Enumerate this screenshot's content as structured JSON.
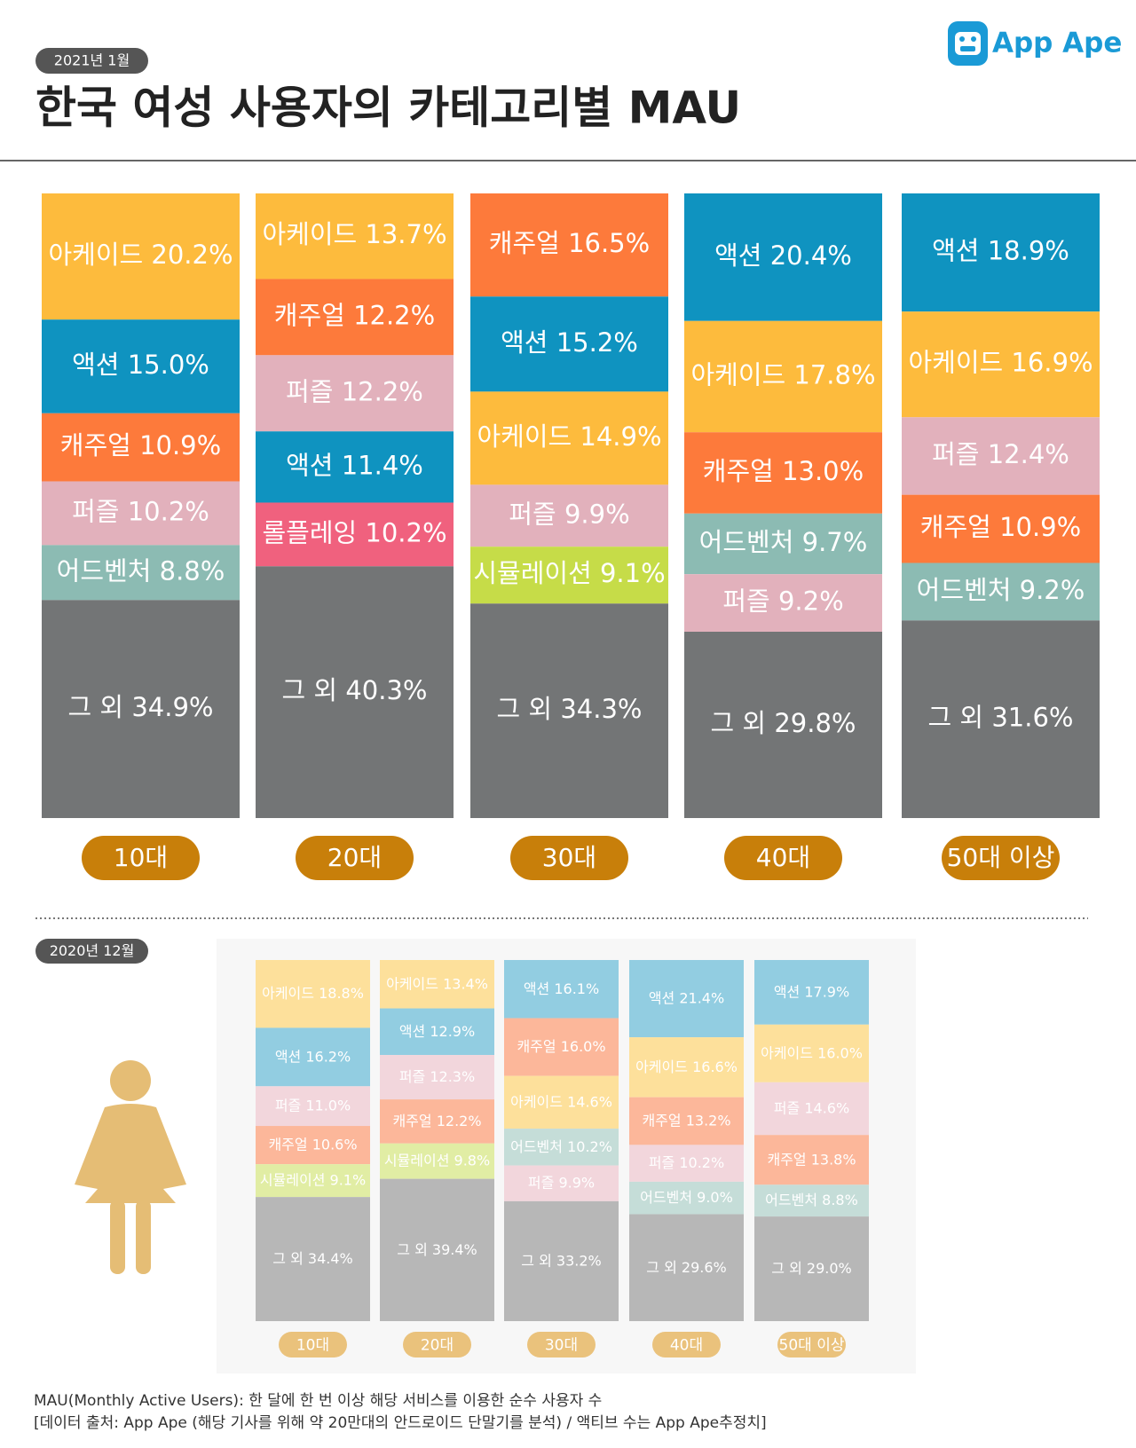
{
  "header": {
    "title": "한국 여성 사용자의 카테고리별 MAU",
    "logo": "App Ape"
  },
  "chart_data": [
    {
      "type": "stacked-bar",
      "period": "2021년 1월",
      "categories": [
        "10대",
        "20대",
        "30대",
        "40대",
        "50대 이상"
      ],
      "colors": {
        "아케이드": "#fdbb3d",
        "액션": "#0f93c0",
        "캐주얼": "#fd7a3b",
        "퍼즐": "#e2b1bc",
        "어드벤처": "#8cbbb3",
        "롤플레잉": "#f0617e",
        "시뮬레이션": "#c6dc48",
        "그 외": "#737576"
      },
      "columns": [
        {
          "names": [
            "아케이드",
            "액션",
            "캐주얼",
            "퍼즐",
            "어드벤처",
            "그 외"
          ],
          "values": [
            20.2,
            15.0,
            10.9,
            10.2,
            8.8,
            34.9
          ],
          "value_labels": [
            "20.2%",
            "15.0%",
            "10.9%",
            "10.2%",
            "8.8%",
            "34.9%"
          ]
        },
        {
          "names": [
            "아케이드",
            "캐주얼",
            "퍼즐",
            "액션",
            "롤플레잉",
            "그 외"
          ],
          "values": [
            13.7,
            12.2,
            12.2,
            11.4,
            10.2,
            40.3
          ],
          "value_labels": [
            "13.7%",
            "12.2%",
            "12.2%",
            "11.4%",
            "10.2%",
            "40.3%"
          ]
        },
        {
          "names": [
            "캐주얼",
            "액션",
            "아케이드",
            "퍼즐",
            "시뮬레이션",
            "그 외"
          ],
          "values": [
            16.5,
            15.2,
            14.9,
            9.9,
            9.1,
            34.3
          ],
          "value_labels": [
            "16.5%",
            "15.2%",
            "14.9%",
            "9.9%",
            "9.1%",
            "34.3%"
          ]
        },
        {
          "names": [
            "액션",
            "아케이드",
            "캐주얼",
            "어드벤처",
            "퍼즐",
            "그 외"
          ],
          "values": [
            20.4,
            17.8,
            13.0,
            9.7,
            9.2,
            29.8
          ],
          "value_labels": [
            "20.4%",
            "17.8%",
            "13.0%",
            "9.7%",
            "9.2%",
            "29.8%"
          ]
        },
        {
          "names": [
            "액션",
            "아케이드",
            "퍼즐",
            "캐주얼",
            "어드벤처",
            "그 외"
          ],
          "values": [
            18.9,
            16.9,
            12.4,
            10.9,
            9.2,
            31.6
          ],
          "value_labels": [
            "18.9%",
            "16.9%",
            "12.4%",
            "10.9%",
            "9.2%",
            "31.6%"
          ]
        }
      ]
    },
    {
      "type": "stacked-bar",
      "period": "2020년 12월",
      "categories": [
        "10대",
        "20대",
        "30대",
        "40대",
        "50대 이상"
      ],
      "colors": {
        "아케이드": "#fde09b",
        "액션": "#92cde1",
        "캐주얼": "#fcb79a",
        "퍼즐": "#f2d6dc",
        "어드벤처": "#c5ddd8",
        "시뮬레이션": "#e1eda4",
        "그 외": "#b7b7b7"
      },
      "columns": [
        {
          "names": [
            "아케이드",
            "액션",
            "퍼즐",
            "캐주얼",
            "시뮬레이션",
            "그 외"
          ],
          "values": [
            18.8,
            16.2,
            11.0,
            10.6,
            9.1,
            34.4
          ],
          "value_labels": [
            "18.8%",
            "16.2%",
            "11.0%",
            "10.6%",
            "9.1%",
            "34.4%"
          ]
        },
        {
          "names": [
            "아케이드",
            "액션",
            "퍼즐",
            "캐주얼",
            "시뮬레이션",
            "그 외"
          ],
          "values": [
            13.4,
            12.9,
            12.3,
            12.2,
            9.8,
            39.4
          ],
          "value_labels": [
            "13.4%",
            "12.9%",
            "12.3%",
            "12.2%",
            "9.8%",
            "39.4%"
          ]
        },
        {
          "names": [
            "액션",
            "캐주얼",
            "아케이드",
            "어드벤처",
            "퍼즐",
            "그 외"
          ],
          "values": [
            16.1,
            16.0,
            14.6,
            10.2,
            9.9,
            33.2
          ],
          "value_labels": [
            "16.1%",
            "16.0%",
            "14.6%",
            "10.2%",
            "9.9%",
            "33.2%"
          ]
        },
        {
          "names": [
            "액션",
            "아케이드",
            "캐주얼",
            "퍼즐",
            "어드벤처",
            "그 외"
          ],
          "values": [
            21.4,
            16.6,
            13.2,
            10.2,
            9.0,
            29.6
          ],
          "value_labels": [
            "21.4%",
            "16.6%",
            "13.2%",
            "10.2%",
            "9.0%",
            "29.6%"
          ]
        },
        {
          "names": [
            "액션",
            "아케이드",
            "퍼즐",
            "캐주얼",
            "어드벤처",
            "그 외"
          ],
          "values": [
            17.9,
            16.0,
            14.6,
            13.8,
            8.8,
            29.0
          ],
          "value_labels": [
            "17.9%",
            "16.0%",
            "14.6%",
            "13.8%",
            "8.8%",
            "29.0%"
          ]
        }
      ]
    }
  ],
  "footer": {
    "lines": [
      "MAU(Monthly Active Users):  한 달에 한 번 이상 해당 서비스를 이용한 순수 사용자 수",
      "[데이터 출처: App Ape (해당 기사를 위해 약 20만대의 안드로이드 단말기를 분석) / 액티브 수는 App Ape추정치]"
    ]
  }
}
